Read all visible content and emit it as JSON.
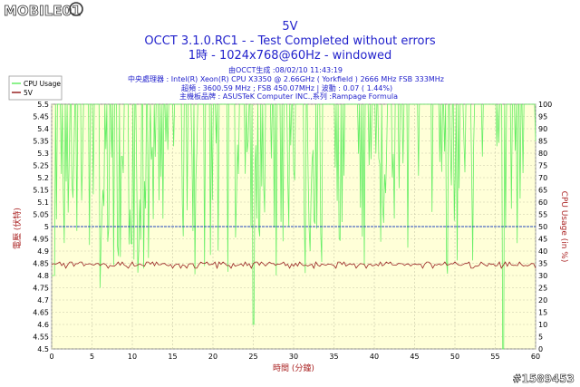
{
  "watermark_logo": "MOBILE01",
  "watermark_id": "#1589453",
  "chart_data": {
    "type": "line",
    "title": "5V",
    "subtitle_lines": [
      "OCCT 3.1.0.RC1 -  - Test Completed without errors",
      "1時 - 1024x768@60Hz - windowed"
    ],
    "info_lines": [
      "由OCCT生成 :08/02/10 11:43:19",
      "中央處理器 : Intel(R) Xeon(R) CPU X3350 @ 2.66GHz ( Yorkfield ) 2666 MHz FSB 333MHz",
      "超頻 : 3600.59 MHz ; FSB 450.07MHz | 波動 : 0.07 ( 1.44%)",
      "主機板品牌 : ASUSTeK Computer INC.,系列 :Rampage Formula"
    ],
    "xlabel": "時間 (分鐘)",
    "ylabel_left": "電壓 (伏特)",
    "ylabel_right": "CPU Usage (in %)",
    "xlim": [
      0,
      60
    ],
    "ylim_left": [
      4.5,
      5.5
    ],
    "ylim_right": [
      0,
      100
    ],
    "x_ticks": [
      "0",
      "5",
      "10",
      "15",
      "20",
      "25",
      "30",
      "35",
      "40",
      "45",
      "50",
      "55",
      "60"
    ],
    "y_ticks_left": [
      "5.5",
      "5.45",
      "5.4",
      "5.35",
      "5.3",
      "5.25",
      "5.2",
      "5.15",
      "5.1",
      "5.05",
      "5",
      "4.95",
      "4.9",
      "4.85",
      "4.8",
      "4.75",
      "4.7",
      "4.65",
      "4.6",
      "4.55",
      "4.5"
    ],
    "y_ticks_right": [
      "100",
      "95",
      "90",
      "85",
      "80",
      "75",
      "70",
      "65",
      "60",
      "55",
      "50",
      "45",
      "40",
      "35",
      "30",
      "25",
      "20",
      "15",
      "10",
      "5",
      "0"
    ],
    "reference_line_y": 5.0,
    "grid": true,
    "legend_position": "top-left",
    "series": [
      {
        "name": "CPU Usage",
        "axis": "right",
        "color": "#66ee66",
        "baseline_percent": 100,
        "low_band_percent": [
          30,
          85
        ]
      },
      {
        "name": "5V",
        "axis": "left",
        "color": "#992222",
        "baseline": 4.844,
        "range": [
          4.83,
          4.855
        ]
      }
    ]
  }
}
